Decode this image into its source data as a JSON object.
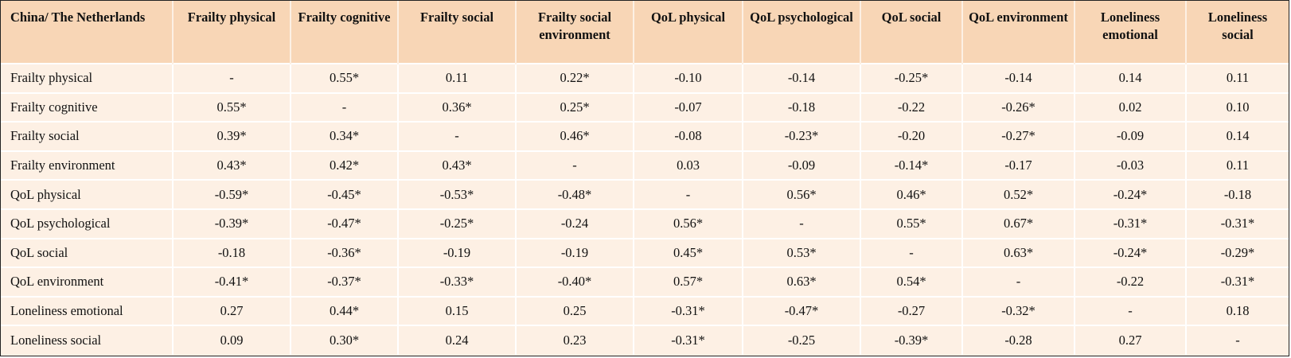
{
  "table": {
    "corner": "China/ The Netherlands",
    "columns": [
      "Frailty physical",
      "Frailty cognitive",
      "Frailty social",
      "Frailty social environment",
      "QoL physical",
      "QoL psychological",
      "QoL social",
      "QoL environment",
      "Loneliness emotional",
      "Loneliness social"
    ],
    "rows": [
      {
        "label": "Frailty physical",
        "cells": [
          "-",
          "0.55*",
          "0.11",
          "0.22*",
          "-0.10",
          "-0.14",
          "-0.25*",
          "-0.14",
          "0.14",
          "0.11"
        ]
      },
      {
        "label": "Frailty cognitive",
        "cells": [
          "0.55*",
          "-",
          "0.36*",
          "0.25*",
          "-0.07",
          "-0.18",
          "-0.22",
          "-0.26*",
          "0.02",
          "0.10"
        ]
      },
      {
        "label": "Frailty social",
        "cells": [
          "0.39*",
          "0.34*",
          "-",
          "0.46*",
          "-0.08",
          "-0.23*",
          "-0.20",
          "-0.27*",
          "-0.09",
          "0.14"
        ]
      },
      {
        "label": "Frailty environment",
        "cells": [
          "0.43*",
          "0.42*",
          "0.43*",
          "-",
          "0.03",
          "-0.09",
          "-0.14*",
          "-0.17",
          "-0.03",
          "0.11"
        ]
      },
      {
        "label": "QoL physical",
        "cells": [
          "-0.59*",
          "-0.45*",
          "-0.53*",
          "-0.48*",
          "-",
          "0.56*",
          "0.46*",
          "0.52*",
          "-0.24*",
          "-0.18"
        ]
      },
      {
        "label": "QoL psychological",
        "cells": [
          "-0.39*",
          "-0.47*",
          "-0.25*",
          "-0.24",
          "0.56*",
          "-",
          "0.55*",
          "0.67*",
          "-0.31*",
          "-0.31*"
        ]
      },
      {
        "label": "QoL social",
        "cells": [
          "-0.18",
          "-0.36*",
          "-0.19",
          "-0.19",
          "0.45*",
          "0.53*",
          "-",
          "0.63*",
          "-0.24*",
          "-0.29*"
        ]
      },
      {
        "label": "QoL environment",
        "cells": [
          "-0.41*",
          "-0.37*",
          "-0.33*",
          "-0.40*",
          "0.57*",
          "0.63*",
          "0.54*",
          "-",
          "-0.22",
          "-0.31*"
        ]
      },
      {
        "label": "Loneliness emotional",
        "cells": [
          "0.27",
          "0.44*",
          "0.15",
          "0.25",
          "-0.31*",
          "-0.47*",
          "-0.27",
          "-0.32*",
          "-",
          "0.18"
        ]
      },
      {
        "label": "Loneliness social",
        "cells": [
          "0.09",
          "0.30*",
          "0.24",
          "0.23",
          "-0.31*",
          "-0.25",
          "-0.39*",
          "-0.28",
          "0.27",
          "-"
        ]
      }
    ]
  },
  "colors": {
    "header_bg": "#f8d6b6",
    "body_bg": "#fdf0e4",
    "grid_line": "#ffffff",
    "border": "#222222"
  }
}
